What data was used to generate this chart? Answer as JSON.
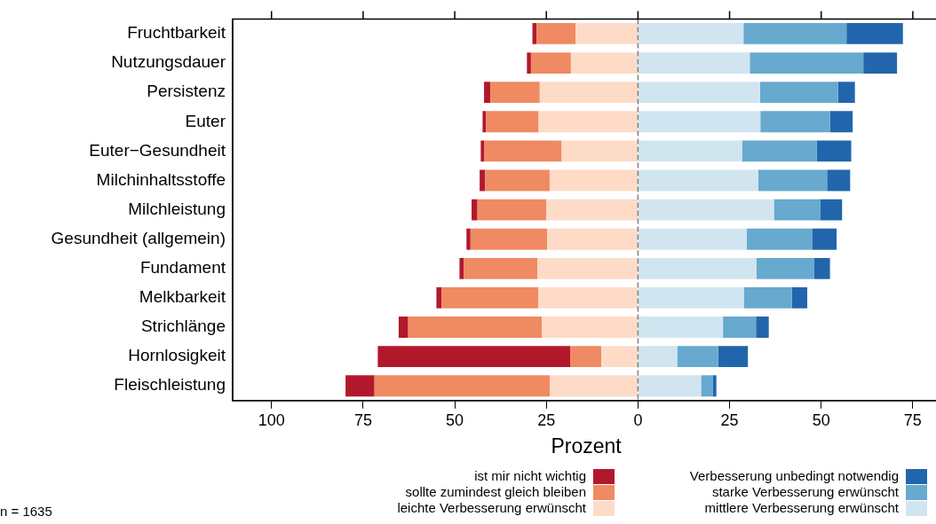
{
  "chart_data": {
    "type": "bar",
    "orientation": "horizontal",
    "stacked": true,
    "categories": [
      "Fruchtbarkeit",
      "Nutzungsdauer",
      "Persistenz",
      "Euter",
      "Euter−Gesundheit",
      "Milchinhaltsstoffe",
      "Milchleistung",
      "Gesundheit (allgemein)",
      "Fundament",
      "Melkbarkeit",
      "Strichlänge",
      "Hornlosigkeit",
      "Fleischleistung"
    ],
    "series": [
      {
        "name": "leichte Verbesserung erwünscht",
        "color": "#fddbc7",
        "values": [
          -17.0,
          -18.3,
          -26.8,
          -27.1,
          -20.8,
          -24.1,
          -25.0,
          -24.8,
          -27.4,
          -27.2,
          -26.2,
          -10.0,
          -24.0
        ]
      },
      {
        "name": "sollte zumindest gleich bleiben",
        "color": "#ef8a62",
        "values": [
          -10.7,
          -10.9,
          -13.5,
          -14.4,
          -21.1,
          -17.6,
          -18.8,
          -20.9,
          -20.1,
          -26.4,
          -36.5,
          -8.5,
          -47.9
        ]
      },
      {
        "name": "ist mir nicht wichtig",
        "color": "#b2182b",
        "values": [
          -1.1,
          -1.1,
          -1.7,
          -0.9,
          -1.0,
          -1.5,
          -1.6,
          -1.1,
          -1.2,
          -1.4,
          -2.6,
          -52.5,
          -7.9
        ]
      },
      {
        "name": "mittlere Verbesserung erwünscht",
        "color": "#d1e5f0",
        "values": [
          28.8,
          30.5,
          33.3,
          33.4,
          28.4,
          32.8,
          37.1,
          29.7,
          32.3,
          28.9,
          23.2,
          10.7,
          17.2
        ]
      },
      {
        "name": "starke Verbesserung erwünscht",
        "color": "#67a9cf",
        "values": [
          28.1,
          31.0,
          21.3,
          19.0,
          20.4,
          18.8,
          12.6,
          17.8,
          15.7,
          13.1,
          9.0,
          11.2,
          3.3
        ]
      },
      {
        "name": "Verbesserung unbedingt notwendig",
        "color": "#2166ac",
        "values": [
          15.4,
          9.2,
          4.6,
          6.2,
          9.4,
          6.3,
          6.0,
          6.7,
          4.4,
          4.2,
          3.5,
          8.1,
          0.9
        ]
      }
    ],
    "xlim": [
      -110.6,
      82.3
    ],
    "xticks": [
      {
        "value": -100,
        "label": "100"
      },
      {
        "value": -75,
        "label": "75"
      },
      {
        "value": -50,
        "label": "50"
      },
      {
        "value": -25,
        "label": "25"
      },
      0,
      25,
      50,
      75
    ],
    "xlabel": "Prozent",
    "ref_lines": [
      {
        "axis": "x",
        "value": 0,
        "color": "#808080",
        "line_style": "dashed"
      }
    ],
    "grid": false,
    "legend": "bottom",
    "annotations": [
      "n = 1635"
    ]
  }
}
